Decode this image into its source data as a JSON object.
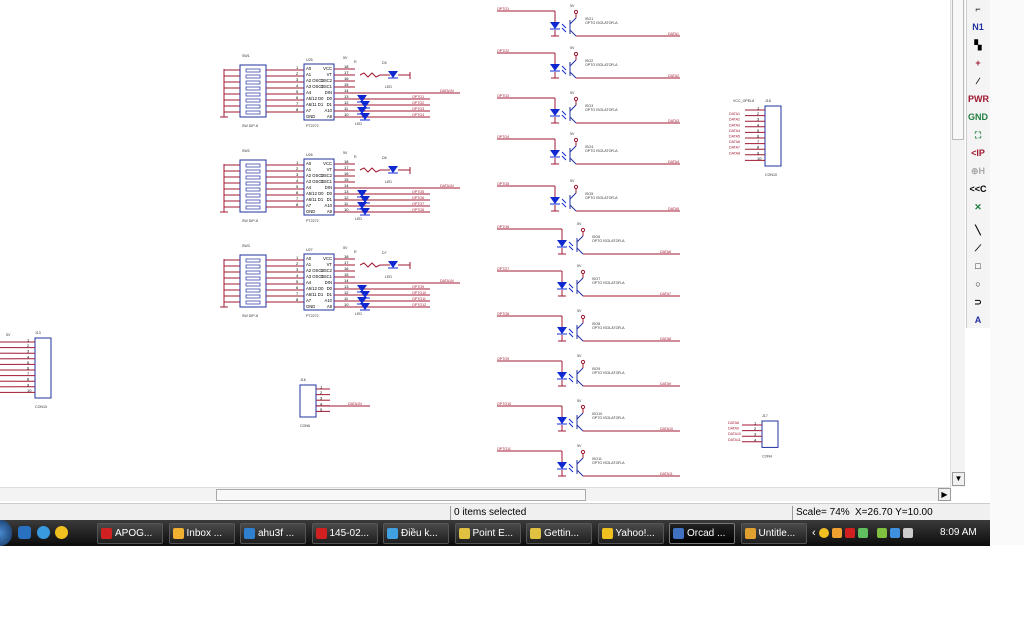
{
  "schematic": {
    "wire_color": "#a01830",
    "part_color": "#2030a0",
    "led_color": "#1028d0",
    "encoders": [
      {
        "ref": "U25",
        "sw": "SW1",
        "part": "PT2272",
        "sw_part": "SW DIP-8",
        "led": "D5",
        "out": "DATA1N",
        "opto_labels": [
          "OPTO1",
          "OPTO2",
          "OPTO3",
          "OPTO4"
        ]
      },
      {
        "ref": "U26",
        "sw": "SW2",
        "part": "PT2272",
        "sw_part": "SW DIP-8",
        "led": "D6",
        "out": "DATA1N",
        "opto_labels": [
          "OPTO5",
          "OPTO6",
          "OPTO7",
          "OPTO8"
        ]
      },
      {
        "ref": "U27",
        "sw": "SW3",
        "part": "PT2272",
        "sw_part": "SW DIP-8",
        "led": "D7",
        "out": "DATA1N",
        "opto_labels": [
          "OPTO9",
          "OPTO10",
          "OPTO11",
          "OPTO12"
        ]
      }
    ],
    "pins_left": [
      "A0",
      "A1",
      "A2 OSC2",
      "A3 OSC1",
      "A4",
      "A5/12 D0",
      "A6/11 D1",
      "A7",
      "GND"
    ],
    "pins_right": [
      "VCC",
      "VT",
      "OSC2",
      "OSC1",
      "DIN",
      "D0",
      "D1",
      "A10",
      "A9"
    ],
    "power": "5V",
    "optos": [
      {
        "ref": "ISO1",
        "in": "OPTO1",
        "out": "DATA1"
      },
      {
        "ref": "ISO2",
        "in": "OPTO2",
        "out": "DATA2"
      },
      {
        "ref": "ISO3",
        "in": "OPTO3",
        "out": "DATA3"
      },
      {
        "ref": "ISO4",
        "in": "OPTO4",
        "out": "DATA4"
      },
      {
        "ref": "ISO5",
        "in": "OPTO5",
        "out": "DATA5"
      },
      {
        "ref": "ISO6",
        "in": "OPTO6",
        "out": "DATA6"
      },
      {
        "ref": "ISO7",
        "in": "OPTO7",
        "out": "DATA7"
      },
      {
        "ref": "ISO8",
        "in": "OPTO8",
        "out": "DATA8"
      },
      {
        "ref": "ISO9",
        "in": "OPTO9",
        "out": "DATA9"
      },
      {
        "ref": "ISO10",
        "in": "OPTO10",
        "out": "DATA10"
      },
      {
        "ref": "ISO11",
        "in": "OPTO11",
        "out": "DATA11"
      }
    ],
    "opto_part": "OPTO ISOLATOR-A",
    "connectors": [
      {
        "ref": "J18",
        "part": "CON10",
        "net": "VCC_OPEL8"
      },
      {
        "ref": "J13",
        "part": "CON10"
      },
      {
        "ref": "J16",
        "part": "CON6",
        "net": "DATA1N"
      },
      {
        "ref": "J17",
        "part": "CON4"
      }
    ]
  },
  "toolbar": {
    "items": [
      "wire-icon",
      "net-alias-icon",
      "bus-icon",
      "junction-icon",
      "bus-entry-icon",
      "power-icon",
      "ground-icon",
      "hierarchical-block-icon",
      "hierarchical-port-icon",
      "hierarchical-pin-icon",
      "off-page-connector-icon",
      "no-connect-icon",
      "line-icon",
      "polyline-icon",
      "rectangle-icon",
      "ellipse-icon",
      "arc-icon",
      "text-icon"
    ],
    "labels": [
      "",
      "N1",
      "",
      "",
      "",
      "PWR",
      "GND",
      "",
      "<IP",
      "",
      "<<C",
      "",
      "",
      "",
      "",
      "",
      "",
      "A"
    ]
  },
  "status": {
    "selection": "0 items selected",
    "scale": "Scale= 74%",
    "coords": "X=26.70  Y=10.00"
  },
  "taskbar": {
    "tasks": [
      {
        "label": "APOG...",
        "icon_color": "#d02020"
      },
      {
        "label": "Inbox ...",
        "icon_color": "#f0b030"
      },
      {
        "label": "ahu3f ...",
        "icon_color": "#3080d0"
      },
      {
        "label": "145-02...",
        "icon_color": "#d02020"
      },
      {
        "label": "Điều k...",
        "icon_color": "#40a0e0"
      },
      {
        "label": "Point E...",
        "icon_color": "#e0c040"
      },
      {
        "label": "Gettin...",
        "icon_color": "#e0c040"
      },
      {
        "label": "Yahoo!...",
        "icon_color": "#f0c020"
      },
      {
        "label": "Orcad ...",
        "icon_color": "#4070c0"
      },
      {
        "label": "Untitle...",
        "icon_color": "#e0a030"
      }
    ],
    "active_task": "Orcad ...",
    "clock": "8:09 AM"
  }
}
